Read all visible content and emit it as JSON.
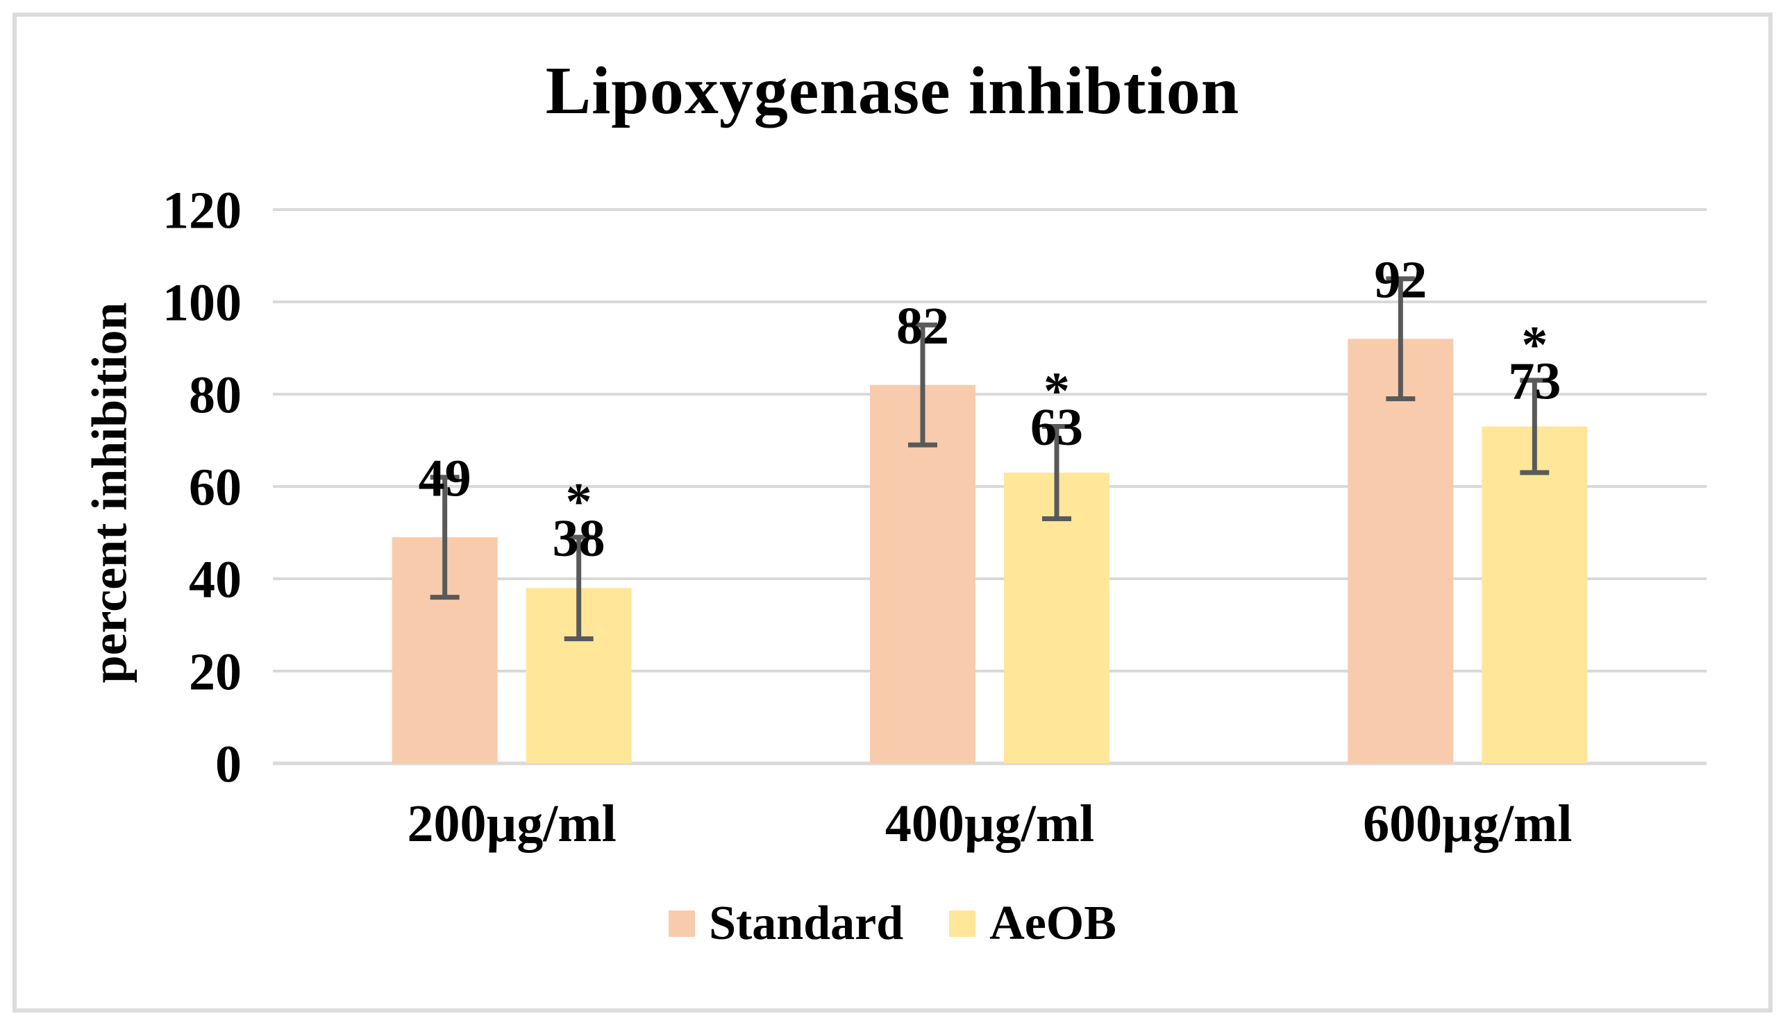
{
  "figure": {
    "background": "#FFFFFF",
    "border_color": "#DCDCDC"
  },
  "chart_data": {
    "type": "bar",
    "title": "Lipoxygenase inhibtion",
    "categories": [
      "200µg/ml",
      "400µg/ml",
      "600µg/ml"
    ],
    "series": [
      {
        "name": "Standard",
        "color": "#F8CBAD",
        "values": [
          49,
          82,
          92
        ],
        "errors": [
          13,
          13,
          13
        ],
        "annotations": [
          "",
          "",
          ""
        ]
      },
      {
        "name": "AeOB",
        "color": "#FFE699",
        "values": [
          38,
          63,
          73
        ],
        "errors": [
          11,
          10,
          10
        ],
        "annotations": [
          "*",
          "*",
          "*"
        ]
      }
    ],
    "xlabel": "",
    "ylabel": "percent inhibition",
    "ylim": [
      0,
      120
    ],
    "yticks": [
      0,
      20,
      40,
      60,
      80,
      100,
      120
    ],
    "grid": true,
    "gridline_color": "#D9D9D9",
    "error_bar_color": "#595959",
    "data_labels": true,
    "legend_position": "bottom"
  },
  "legend": {
    "items": [
      {
        "label": "Standard",
        "color": "#F8CBAD"
      },
      {
        "label": "AeOB",
        "color": "#FFE699"
      }
    ]
  }
}
